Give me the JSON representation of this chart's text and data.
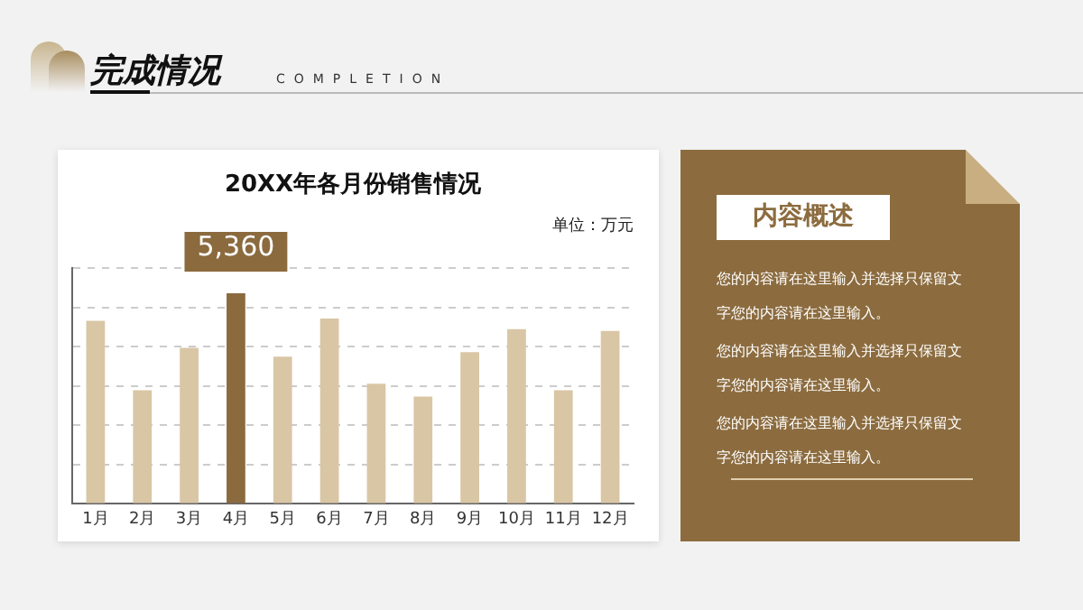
{
  "chart_data": [
    {
      "type": "bar",
      "title": "20XX年各月份销售情况",
      "categories": [
        "1月",
        "2月",
        "3月",
        "4月",
        "5月",
        "6月",
        "7月",
        "8月",
        "9月",
        "10月",
        "11月",
        "12月"
      ],
      "values": [
        4660,
        2890,
        3970,
        5360,
        3750,
        4720,
        3060,
        2730,
        3860,
        4450,
        2890,
        4400
      ],
      "colors": [
        "#d9c6a5",
        "#d9c6a5",
        "#d9c6a5",
        "#8b6a3e",
        "#d9c6a5",
        "#d9c6a5",
        "#d9c6a5",
        "#d9c6a5",
        "#d9c6a5",
        "#d9c6a5",
        "#d9c6a5",
        "#d9c6a5"
      ],
      "value_labels": [
        null,
        null,
        null,
        "5,360",
        null,
        null,
        null,
        null,
        null,
        null,
        null,
        null
      ],
      "tick_labels": "x",
      "grid": "y",
      "legend": false,
      "annotations": [
        "完成情况",
        "COMPLETION",
        "单位：万元"
      ]
    },
    {
      "type": "other",
      "title": "内容概述",
      "annotations": [
        "您的内容请在这里输入并选择只保留文字您的内容请在这里输入。",
        "您的内容请在这里输入并选择只保留文字您的内容请在这里输入。",
        "您的内容请在这里输入并选择只保留文字您的内容请在这里输入。"
      ]
    }
  ]
}
